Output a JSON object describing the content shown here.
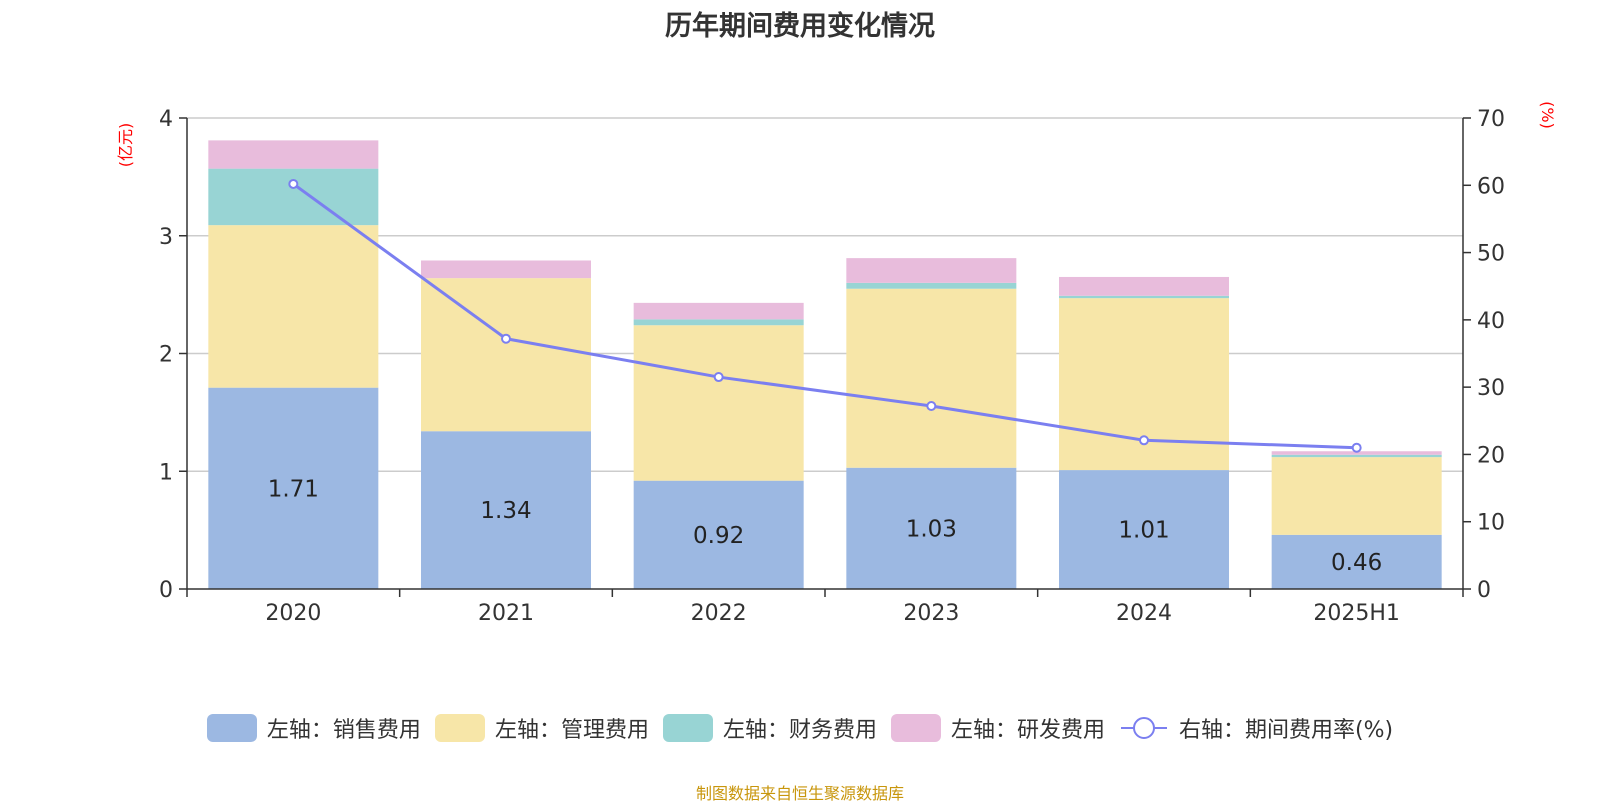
{
  "chart_data": {
    "type": "bar",
    "title": "历年期间费用变化情况",
    "categories": [
      "2020",
      "2021",
      "2022",
      "2023",
      "2024",
      "2025H1"
    ],
    "y_left": {
      "unit_label": "(亿元)",
      "range": [
        0,
        4
      ],
      "ticks": [
        "0",
        "1",
        "2",
        "3",
        "4"
      ]
    },
    "y_right": {
      "unit_label": "(%)",
      "range": [
        0,
        70
      ],
      "ticks": [
        "0",
        "10",
        "20",
        "30",
        "40",
        "50",
        "60",
        "70"
      ]
    },
    "stacked": true,
    "grid": true,
    "legend_position": "bottom",
    "series": [
      {
        "name": "左轴：销售费用",
        "axis": "left",
        "color": "#9cb8e2",
        "values": [
          1.71,
          1.34,
          0.92,
          1.03,
          1.01,
          0.46
        ],
        "data_labels": [
          "1.71",
          "1.34",
          "0.92",
          "1.03",
          "1.01",
          "0.46"
        ]
      },
      {
        "name": "左轴：管理费用",
        "axis": "left",
        "color": "#f7e6a8",
        "values": [
          1.38,
          1.3,
          1.32,
          1.52,
          1.46,
          0.66
        ]
      },
      {
        "name": "左轴：财务费用",
        "axis": "left",
        "color": "#98d4d4",
        "values": [
          0.48,
          0.0,
          0.05,
          0.05,
          0.02,
          0.02
        ]
      },
      {
        "name": "左轴：研发费用",
        "axis": "left",
        "color": "#e8bcdc",
        "values": [
          0.24,
          0.15,
          0.14,
          0.21,
          0.16,
          0.03
        ]
      },
      {
        "name": "右轴：期间费用率(%)",
        "axis": "right",
        "type": "line",
        "color": "#7b7ff0",
        "values": [
          60.2,
          37.2,
          31.5,
          27.2,
          22.1,
          21.0
        ]
      }
    ]
  },
  "footer": {
    "source": "制图数据来自恒生聚源数据库"
  },
  "colors": {
    "axis_unit_label": "#ff0000",
    "source_text": "#c8960c",
    "gridline": "#cccccc",
    "axis_line": "#333333"
  }
}
